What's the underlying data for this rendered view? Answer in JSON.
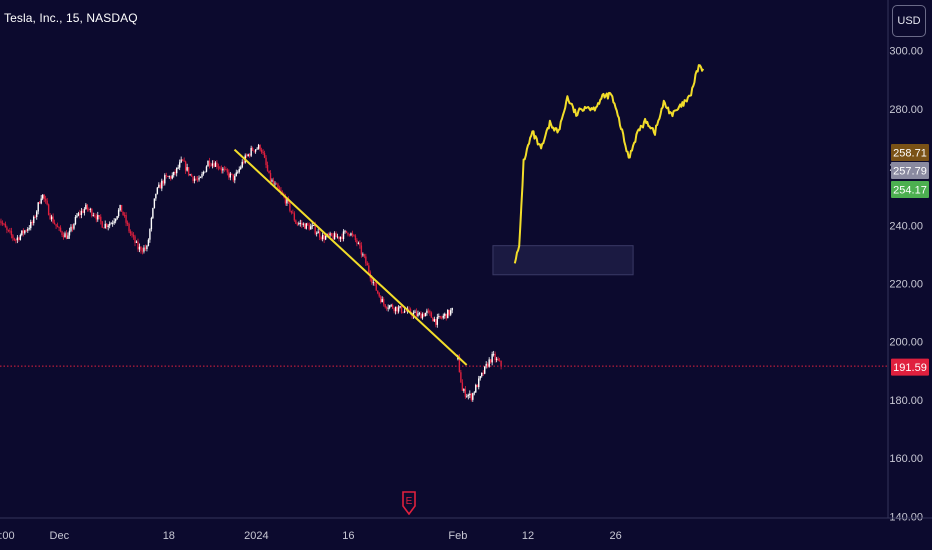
{
  "header": {
    "symbol_title": "Tesla, Inc., 15, NASDAQ",
    "currency_label": "USD"
  },
  "colors": {
    "background": "#0c0a2e",
    "candle_up": "#ffffff",
    "candle_down": "#e0203e",
    "trendline": "#f2dd2a",
    "projection": "#f2dd2a",
    "last_price_badge": "#e0203e",
    "badge_brown": "#7a5216",
    "badge_gray": "#8a8aa0",
    "badge_green": "#4caf50",
    "axis_text": "#c8c8d4",
    "earnings_icon": "#e0203e"
  },
  "events": {
    "earnings_icon": "earnings-e-icon",
    "earnings_label": "E"
  },
  "chart_data": {
    "type": "candlestick",
    "title": "Tesla, Inc., 15, NASDAQ",
    "currency": "USD",
    "ylim": [
      137,
      314
    ],
    "y_ticks": [
      140,
      160,
      180,
      200,
      220,
      240,
      260,
      280,
      300
    ],
    "y_tick_labels": [
      "140.00",
      "160.00",
      "180.00",
      "200.00",
      "220.00",
      "240.00",
      "260.00",
      "280.00",
      "300.00"
    ],
    "x_tick_labels": [
      ":00",
      "Dec",
      "18",
      "2024",
      "16",
      "Feb",
      "12",
      "26"
    ],
    "x_tick_index": [
      0,
      14,
      39,
      59,
      80,
      105,
      121,
      141
    ],
    "price_path": [
      [
        0,
        243
      ],
      [
        2,
        238
      ],
      [
        4,
        235
      ],
      [
        6,
        238
      ],
      [
        8,
        241
      ],
      [
        10,
        251
      ],
      [
        12,
        243
      ],
      [
        14,
        238
      ],
      [
        16,
        236
      ],
      [
        18,
        243
      ],
      [
        20,
        246
      ],
      [
        22,
        244
      ],
      [
        24,
        240
      ],
      [
        26,
        241
      ],
      [
        28,
        246
      ],
      [
        30,
        238
      ],
      [
        32,
        232
      ],
      [
        34,
        232
      ],
      [
        36,
        251
      ],
      [
        38,
        256
      ],
      [
        40,
        257
      ],
      [
        42,
        262
      ],
      [
        44,
        257
      ],
      [
        46,
        255
      ],
      [
        48,
        262
      ],
      [
        50,
        261
      ],
      [
        52,
        258
      ],
      [
        54,
        256
      ],
      [
        56,
        262
      ],
      [
        58,
        266
      ],
      [
        60,
        267
      ],
      [
        62,
        256
      ],
      [
        64,
        252
      ],
      [
        66,
        248
      ],
      [
        68,
        241
      ],
      [
        70,
        240
      ],
      [
        72,
        239
      ],
      [
        74,
        236
      ],
      [
        76,
        236
      ],
      [
        78,
        236
      ],
      [
        80,
        238
      ],
      [
        82,
        234
      ],
      [
        84,
        227
      ],
      [
        86,
        219
      ],
      [
        88,
        213
      ],
      [
        90,
        212
      ],
      [
        92,
        211
      ],
      [
        94,
        210
      ],
      [
        96,
        209
      ],
      [
        98,
        210
      ],
      [
        100,
        207
      ],
      [
        102,
        209
      ],
      [
        104,
        211
      ]
    ],
    "post_gap_path": [
      [
        105,
        194
      ],
      [
        106,
        183
      ],
      [
        108,
        181
      ],
      [
        110,
        187
      ],
      [
        112,
        193
      ],
      [
        113,
        195
      ],
      [
        115,
        191.59
      ]
    ],
    "projection_path": [
      [
        118,
        228
      ],
      [
        119,
        232
      ],
      [
        120,
        262
      ],
      [
        122,
        272
      ],
      [
        124,
        266
      ],
      [
        126,
        275
      ],
      [
        128,
        272
      ],
      [
        130,
        284
      ],
      [
        132,
        278
      ],
      [
        134,
        281
      ],
      [
        136,
        280
      ],
      [
        138,
        284
      ],
      [
        140,
        285
      ],
      [
        142,
        275
      ],
      [
        144,
        263
      ],
      [
        146,
        272
      ],
      [
        148,
        276
      ],
      [
        150,
        272
      ],
      [
        152,
        282
      ],
      [
        154,
        278
      ],
      [
        156,
        281
      ],
      [
        158,
        284
      ],
      [
        160,
        295
      ],
      [
        161,
        293
      ]
    ],
    "trendline": {
      "from": [
        54,
        266
      ],
      "to": [
        107,
        192
      ]
    },
    "highlight_box": {
      "x_from": 113,
      "x_to": 145,
      "y_from": 223,
      "y_to": 233
    },
    "x_max_index": 215,
    "last_price": 191.59,
    "price_badges": [
      {
        "label": "258.71",
        "value": 258.71,
        "color_key": "badge_brown"
      },
      {
        "label": "257.79",
        "value": 257.79,
        "color_key": "badge_gray"
      },
      {
        "label": "254.17",
        "value": 254.17,
        "color_key": "badge_green"
      },
      {
        "label": "191.59",
        "value": 191.59,
        "color_key": "last_price_badge"
      }
    ]
  }
}
